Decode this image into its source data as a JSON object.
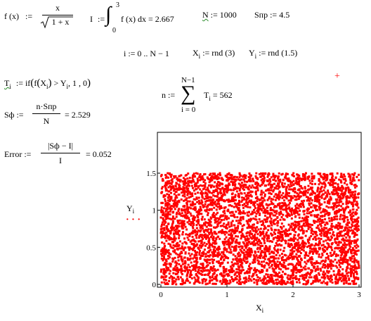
{
  "colors": {
    "accent": "#ff0000",
    "wavy": "#2a8c2a"
  },
  "eq_f": {
    "lhs": "f (x)",
    "assign": ":=",
    "num": "x",
    "den": "1 + x"
  },
  "eq_I": {
    "lhs": "I",
    "assign": ":=",
    "upper": "3",
    "lower": "0",
    "integrand": "f (x) dx = 2.667"
  },
  "eq_N": {
    "text": "N",
    "rest": ":= 1000"
  },
  "eq_Snp": {
    "text": "Sпр := 4.5"
  },
  "eq_range": {
    "text": "i := 0 .. N − 1"
  },
  "eq_X": {
    "name": "X",
    "sub": "i",
    "rest": ":= rnd (3)"
  },
  "eq_Y": {
    "name": "Y",
    "sub": "i",
    "rest": ":= rnd (1.5)"
  },
  "eq_T": {
    "name": "T",
    "sub": "i",
    "assign": ":=",
    "body_a": "if",
    "body_b": "f",
    "body_c": "X",
    "body_csub": "i",
    "body_d": "> Y",
    "body_dsub": "i",
    "body_e": ", 1 , 0"
  },
  "eq_n": {
    "lhs": "n :=",
    "upper": "N−1",
    "lower": "i = 0",
    "sigma": "∑",
    "body": "T",
    "body_sub": "i",
    "result": "= 562"
  },
  "eq_Sf": {
    "lhs": "Sф :=",
    "num": "n·Sпр",
    "den": "N",
    "result": "= 2.529"
  },
  "eq_err": {
    "lhs": "Error :=",
    "num": "|Sф − I|",
    "den": "I",
    "result": "= 0.052"
  },
  "red_cross": "+",
  "chart_data": {
    "type": "scatter",
    "title": "",
    "xlabel": "X",
    "xlabel_sub": "i",
    "ylabel": "Y",
    "ylabel_sub": "i",
    "legend_marker": "·  ·  ·",
    "xlim": [
      0,
      3
    ],
    "ylim": [
      0,
      1.5
    ],
    "xticks": [
      "0",
      "1",
      "2",
      "3"
    ],
    "yticks": [
      "0",
      "0.5",
      "1",
      "1.5"
    ],
    "marker_color": "#ff0000",
    "n_points": 1000,
    "x_distribution": "uniform rnd(3)",
    "y_distribution": "uniform rnd(1.5)",
    "grid": false
  }
}
